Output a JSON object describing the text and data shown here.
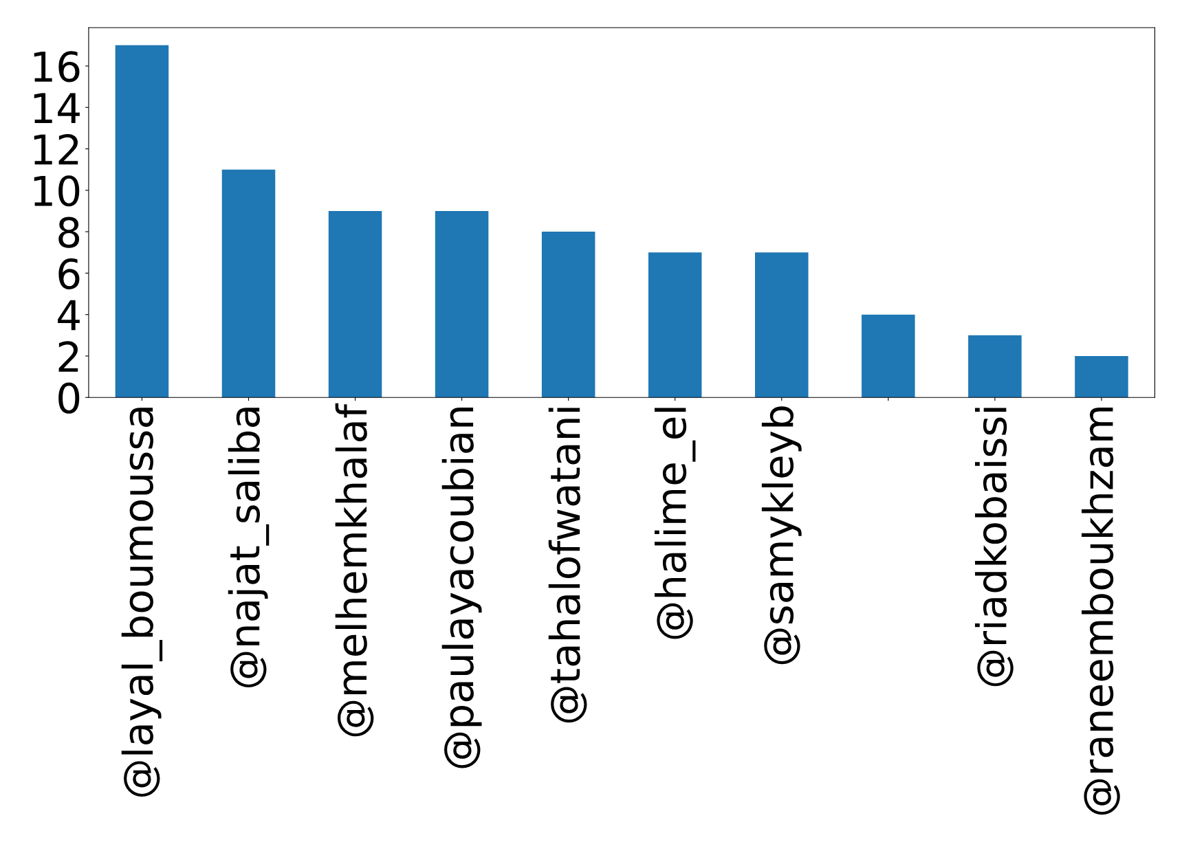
{
  "chart_data": {
    "type": "bar",
    "categories": [
      "@layal_boumoussa",
      "@najat_saliba",
      "@melhemkhalaf",
      "@paulayacoubian",
      "@tahalofwatani",
      "@halime_el",
      "@samykleyb",
      null,
      "@riadkobaissi",
      "@raneemboukhzam"
    ],
    "values": [
      17,
      11,
      9,
      9,
      8,
      7,
      7,
      4,
      3,
      2
    ],
    "color": "#1f77b4",
    "ylim": [
      0,
      17.85
    ],
    "yticks": [
      0,
      2,
      4,
      6,
      8,
      10,
      12,
      14,
      16
    ],
    "grid": false,
    "legend": false
  }
}
